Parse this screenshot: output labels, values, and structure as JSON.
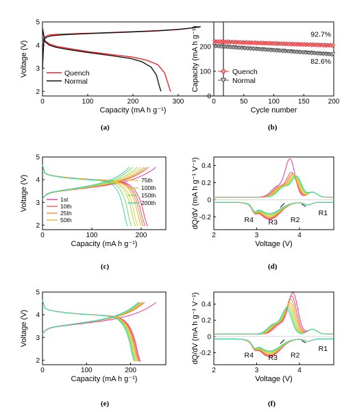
{
  "chart_data": [
    {
      "panel": "(a)",
      "type": "line",
      "xlabel": "Capacity (mA h g⁻¹)",
      "ylabel": "Voltage (V)",
      "xlim": [
        0,
        400
      ],
      "ylim": [
        1.8,
        5.0
      ],
      "xticks": [
        0,
        100,
        200,
        300
      ],
      "yticks": [
        2,
        3,
        4,
        5
      ],
      "legend": "bottom-left",
      "series": [
        {
          "name": "Quench",
          "color": "#e8262e",
          "charge": {
            "x": [
              0,
              3,
              10,
              20,
              40,
              80,
              120,
              160,
              200,
              250,
              300,
              330,
              345
            ],
            "y": [
              3.05,
              4.3,
              4.42,
              4.45,
              4.47,
              4.5,
              4.52,
              4.55,
              4.58,
              4.62,
              4.68,
              4.74,
              4.8
            ]
          },
          "discharge": {
            "x": [
              0,
              5,
              15,
              30,
              60,
              100,
              150,
              200,
              230,
              255,
              270,
              278,
              283
            ],
            "y": [
              4.75,
              4.2,
              4.05,
              3.95,
              3.85,
              3.72,
              3.6,
              3.48,
              3.35,
              3.15,
              2.8,
              2.3,
              2.0
            ]
          }
        },
        {
          "name": "Normal",
          "color": "#111111",
          "charge": {
            "x": [
              0,
              3,
              10,
              20,
              40,
              80,
              120,
              160,
              200,
              250,
              300,
              330,
              350
            ],
            "y": [
              3.0,
              4.25,
              4.35,
              4.4,
              4.44,
              4.48,
              4.51,
              4.54,
              4.57,
              4.61,
              4.67,
              4.74,
              4.8
            ]
          },
          "discharge": {
            "x": [
              0,
              5,
              15,
              30,
              60,
              100,
              150,
              195,
              220,
              240,
              252,
              258,
              262
            ],
            "y": [
              4.72,
              4.15,
              4.0,
              3.9,
              3.8,
              3.68,
              3.55,
              3.42,
              3.28,
              3.05,
              2.7,
              2.25,
              2.0
            ]
          }
        }
      ]
    },
    {
      "panel": "(b)",
      "type": "scatter",
      "xlabel": "Cycle number",
      "ylabel": "Capacity (mA h g⁻¹)",
      "xlim": [
        0,
        200
      ],
      "ylim": [
        0,
        300
      ],
      "xticks": [
        0,
        50,
        100,
        150,
        200
      ],
      "yticks": [
        0,
        100,
        200
      ],
      "legend": "bottom-left",
      "annotations": [
        {
          "text": "92.7%"
        },
        {
          "text": "82.6%"
        }
      ],
      "series": [
        {
          "name": "Quench",
          "color": "#e8262e",
          "marker": "diamond",
          "start": 221,
          "end": 205
        },
        {
          "name": "Normal",
          "color": "#444444",
          "marker": "triangle-down",
          "start": 203,
          "end": 168
        }
      ]
    },
    {
      "panel": "(c)",
      "type": "line",
      "xlabel": "Capacity (mA h g⁻¹)",
      "ylabel": "Voltage (V)",
      "xlim": [
        0,
        250
      ],
      "ylim": [
        1.8,
        5.0
      ],
      "xticks": [
        0,
        100,
        200
      ],
      "yticks": [
        2,
        3,
        4,
        5
      ],
      "legend_left": [
        "1st",
        "10th",
        "25th",
        "50th"
      ],
      "legend_right": [
        "75th",
        "100th",
        "150th",
        "200th"
      ],
      "series": [
        {
          "name": "1st",
          "color": "#e8359a",
          "charge_end": 230,
          "discharge_end": 213
        },
        {
          "name": "10th",
          "color": "#f05a5a",
          "charge_end": 215,
          "discharge_end": 208
        },
        {
          "name": "25th",
          "color": "#f08c3c",
          "charge_end": 210,
          "discharge_end": 204
        },
        {
          "name": "50th",
          "color": "#f0b040",
          "charge_end": 205,
          "discharge_end": 200
        },
        {
          "name": "75th",
          "color": "#e0d040",
          "charge_end": 198,
          "discharge_end": 193
        },
        {
          "name": "100th",
          "color": "#b8d840",
          "charge_end": 192,
          "discharge_end": 188
        },
        {
          "name": "150th",
          "color": "#7cd850",
          "charge_end": 183,
          "discharge_end": 180
        },
        {
          "name": "200th",
          "color": "#3ad6b0",
          "charge_end": 176,
          "discharge_end": 172
        }
      ]
    },
    {
      "panel": "(d)",
      "type": "line",
      "xlabel": "Voltage (V)",
      "ylabel": "dQ/dV (mA h g⁻¹ V⁻¹)",
      "xlim": [
        2.0,
        4.8
      ],
      "ylim": [
        -0.35,
        0.5
      ],
      "xticks": [
        2,
        3,
        4
      ],
      "yticks": [
        -0.2,
        0.0,
        0.2,
        0.4
      ],
      "labels": [
        "R1",
        "R2",
        "R3",
        "R4"
      ],
      "series": [
        {
          "name": "1st",
          "color": "#e8359a",
          "ox": 3.78,
          "oh": 0.44,
          "rd": -0.2
        },
        {
          "name": "10th",
          "color": "#f05a5a",
          "ox": 3.82,
          "oh": 0.28,
          "rd": -0.19
        },
        {
          "name": "25th",
          "color": "#f08c3c",
          "ox": 3.84,
          "oh": 0.26,
          "rd": -0.18
        },
        {
          "name": "50th",
          "color": "#f0b040",
          "ox": 3.86,
          "oh": 0.25,
          "rd": -0.17
        },
        {
          "name": "75th",
          "color": "#e0d040",
          "ox": 3.88,
          "oh": 0.25,
          "rd": -0.16
        },
        {
          "name": "100th",
          "color": "#b8d840",
          "ox": 3.9,
          "oh": 0.24,
          "rd": -0.15
        },
        {
          "name": "150th",
          "color": "#7cd850",
          "ox": 3.92,
          "oh": 0.24,
          "rd": -0.14
        },
        {
          "name": "200th",
          "color": "#3ad6b0",
          "ox": 3.94,
          "oh": 0.23,
          "rd": -0.13
        }
      ]
    },
    {
      "panel": "(e)",
      "type": "line",
      "xlabel": "Capacity (mA h g⁻¹)",
      "ylabel": "Voltage (V)",
      "xlim": [
        0,
        280
      ],
      "ylim": [
        1.8,
        5.0
      ],
      "xticks": [
        0,
        100,
        200
      ],
      "yticks": [
        2,
        3,
        4,
        5
      ],
      "series": [
        {
          "name": "1st",
          "color": "#e8359a",
          "charge_end": 258,
          "discharge_end": 222
        },
        {
          "name": "10th",
          "color": "#f05a5a",
          "charge_end": 232,
          "discharge_end": 220
        },
        {
          "name": "25th",
          "color": "#f08c3c",
          "charge_end": 228,
          "discharge_end": 218
        },
        {
          "name": "50th",
          "color": "#f0b040",
          "charge_end": 226,
          "discharge_end": 216
        },
        {
          "name": "75th",
          "color": "#e0d040",
          "charge_end": 224,
          "discharge_end": 214
        },
        {
          "name": "100th",
          "color": "#b8d840",
          "charge_end": 222,
          "discharge_end": 212
        },
        {
          "name": "150th",
          "color": "#7cd850",
          "charge_end": 220,
          "discharge_end": 210
        },
        {
          "name": "200th",
          "color": "#3ad6b0",
          "charge_end": 218,
          "discharge_end": 208
        }
      ]
    },
    {
      "panel": "(f)",
      "type": "line",
      "xlabel": "Voltage (V)",
      "ylabel": "dQ/dV (mA h g⁻¹ V⁻¹)",
      "xlim": [
        2.0,
        4.8
      ],
      "ylim": [
        -0.35,
        0.55
      ],
      "xticks": [
        2,
        3,
        4
      ],
      "yticks": [
        -0.2,
        0.0,
        0.2,
        0.4
      ],
      "labels": [
        "R1",
        "R2",
        "R3",
        "R4"
      ],
      "series": [
        {
          "name": "1st",
          "color": "#e8359a",
          "ox": 3.85,
          "oh": 0.5,
          "rd": -0.22
        },
        {
          "name": "10th",
          "color": "#f05a5a",
          "ox": 3.82,
          "oh": 0.46,
          "rd": -0.21
        },
        {
          "name": "25th",
          "color": "#f08c3c",
          "ox": 3.8,
          "oh": 0.42,
          "rd": -0.2
        },
        {
          "name": "50th",
          "color": "#f0b040",
          "ox": 3.78,
          "oh": 0.38,
          "rd": -0.19
        },
        {
          "name": "75th",
          "color": "#e0d040",
          "ox": 3.76,
          "oh": 0.36,
          "rd": -0.18
        },
        {
          "name": "100th",
          "color": "#b8d840",
          "ox": 3.74,
          "oh": 0.34,
          "rd": -0.17
        },
        {
          "name": "150th",
          "color": "#7cd850",
          "ox": 3.72,
          "oh": 0.32,
          "rd": -0.16
        },
        {
          "name": "200th",
          "color": "#3ad6b0",
          "ox": 3.7,
          "oh": 0.3,
          "rd": -0.15
        }
      ]
    }
  ]
}
